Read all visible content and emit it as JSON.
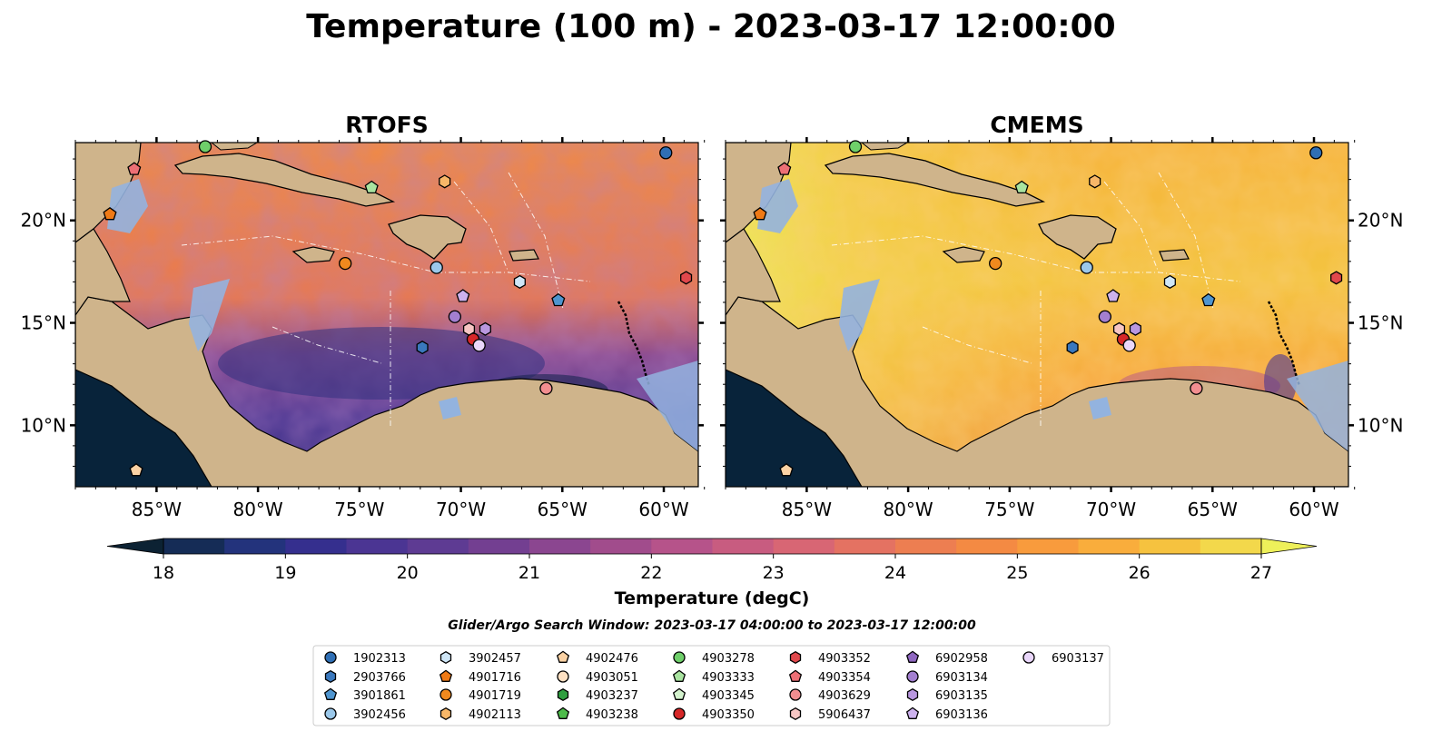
{
  "figure": {
    "title": "Temperature (100 m) - 2023-03-17 12:00:00"
  },
  "panels": [
    {
      "title": "RTOFS"
    },
    {
      "title": "CMEMS"
    }
  ],
  "map": {
    "lon_range": [
      -89,
      -58.3
    ],
    "lat_range": [
      7.0,
      23.8
    ],
    "lon_ticks": [
      "85°W",
      "80°W",
      "75°W",
      "70°W",
      "65°W",
      "60°W"
    ],
    "lon_tick_values": [
      -85,
      -80,
      -75,
      -70,
      -65,
      -60
    ],
    "lat_ticks": [
      "20°N",
      "15°N",
      "10°N"
    ],
    "lat_tick_values": [
      20,
      15,
      10
    ],
    "land_color": "#cfb48b",
    "shelf_color": "#93b3df",
    "deep_land_color": "#08233a"
  },
  "colorbar": {
    "label": "Temperature (degC)",
    "ticks": [
      "18",
      "19",
      "20",
      "21",
      "22",
      "23",
      "24",
      "25",
      "26",
      "27"
    ],
    "range": [
      18,
      27
    ],
    "colors": [
      "#0c2233",
      "#152c56",
      "#23337c",
      "#352f8e",
      "#4b3593",
      "#5e3b93",
      "#733f91",
      "#8b4690",
      "#a14c8c",
      "#b6538a",
      "#c85c80",
      "#d86674",
      "#e47262",
      "#ed7e51",
      "#f48a43",
      "#f89b3d",
      "#f9ad3c",
      "#f6c23f",
      "#f3d84b",
      "#eef05a"
    ]
  },
  "search_window": "Glider/Argo Search Window: 2023-03-17 04:00:00 to 2023-03-17 12:00:00",
  "chart_data": {
    "type": "scatter",
    "title": "Temperature (100 m) - 2023-03-17 12:00:00",
    "xlabel": "",
    "ylabel": "",
    "xlim": [
      -89,
      -58.3
    ],
    "ylim": [
      7.0,
      23.8
    ],
    "series": [
      {
        "name": "1902313",
        "marker": "circle",
        "color": "#2f6fb5",
        "lon": -59.9,
        "lat": 23.3
      },
      {
        "name": "2903766",
        "marker": "hexagon",
        "color": "#3a78bd",
        "lon": -71.9,
        "lat": 13.8
      },
      {
        "name": "3901861",
        "marker": "pentagon",
        "color": "#4f95cf",
        "lon": -65.2,
        "lat": 16.1
      },
      {
        "name": "3902456",
        "marker": "circle",
        "color": "#9bc8ea",
        "lon": -71.2,
        "lat": 17.7
      },
      {
        "name": "3902457",
        "marker": "hexagon",
        "color": "#cfe6f6",
        "lon": -67.1,
        "lat": 17.0
      },
      {
        "name": "4901716",
        "marker": "pentagon",
        "color": "#ef7a16",
        "lon": -87.3,
        "lat": 20.3
      },
      {
        "name": "4901719",
        "marker": "circle",
        "color": "#f0891e",
        "lon": -75.7,
        "lat": 17.9
      },
      {
        "name": "4902113",
        "marker": "hexagon",
        "color": "#f8b768",
        "lon": -70.8,
        "lat": 21.9
      },
      {
        "name": "4902476",
        "marker": "pentagon",
        "color": "#fbd2a4",
        "lon": -86.0,
        "lat": 7.8
      },
      {
        "name": "4903051",
        "marker": "circle",
        "color": "#fde0c2",
        "lon": 0,
        "lat": 0,
        "shown": false
      },
      {
        "name": "4903237",
        "marker": "hexagon",
        "color": "#2f9e3f",
        "lon": 0,
        "lat": 0,
        "shown": false
      },
      {
        "name": "4903238",
        "marker": "pentagon",
        "color": "#4dbb4a",
        "lon": 0,
        "lat": 0,
        "shown": false
      },
      {
        "name": "4903278",
        "marker": "circle",
        "color": "#6fcf6a",
        "lon": -82.6,
        "lat": 23.6
      },
      {
        "name": "4903333",
        "marker": "pentagon",
        "color": "#a9e3a0",
        "lon": -74.4,
        "lat": 21.6
      },
      {
        "name": "4903345",
        "marker": "pentagon",
        "color": "#d3f2cd",
        "lon": 0,
        "lat": 0,
        "shown": false
      },
      {
        "name": "4903350",
        "marker": "circle",
        "color": "#d62728",
        "lon": -69.4,
        "lat": 14.2
      },
      {
        "name": "4903352",
        "marker": "hexagon",
        "color": "#e0484c",
        "lon": -58.9,
        "lat": 17.2
      },
      {
        "name": "4903354",
        "marker": "pentagon",
        "color": "#ec6f75",
        "lon": -86.1,
        "lat": 22.5
      },
      {
        "name": "4903629",
        "marker": "circle",
        "color": "#f28e90",
        "lon": -65.8,
        "lat": 11.8
      },
      {
        "name": "5906437",
        "marker": "hexagon",
        "color": "#f7c6c4",
        "lon": -69.6,
        "lat": 14.7
      },
      {
        "name": "6902958",
        "marker": "pentagon",
        "color": "#8f67c0",
        "lon": 0,
        "lat": 0,
        "shown": false
      },
      {
        "name": "6903134",
        "marker": "circle",
        "color": "#a37fd0",
        "lon": -70.3,
        "lat": 15.3
      },
      {
        "name": "6903135",
        "marker": "hexagon",
        "color": "#b997e0",
        "lon": -68.8,
        "lat": 14.7
      },
      {
        "name": "6903136",
        "marker": "pentagon",
        "color": "#cdb2ee",
        "lon": -69.9,
        "lat": 16.3
      },
      {
        "name": "6903137",
        "marker": "circle",
        "color": "#ead7fb",
        "lon": -69.1,
        "lat": 13.9
      }
    ]
  }
}
